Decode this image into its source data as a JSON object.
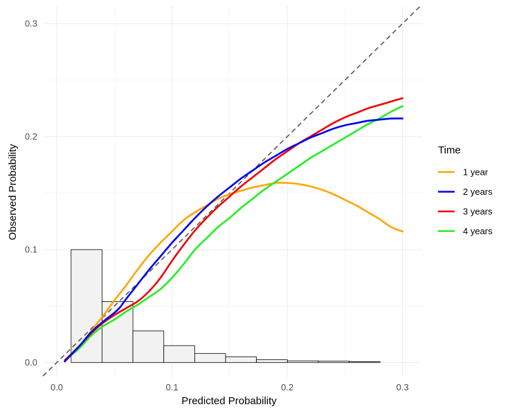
{
  "chart_data": {
    "type": "line",
    "title": "",
    "xlabel": "Predicted Probability",
    "ylabel": "Observed Probability",
    "xlim": [
      -0.012,
      0.317
    ],
    "ylim": [
      -0.013,
      0.316
    ],
    "x_ticks": [
      0.0,
      0.1,
      0.2,
      0.3
    ],
    "x_tick_labels": [
      "0.0",
      "0.1",
      "0.2",
      "0.3"
    ],
    "y_ticks": [
      0.0,
      0.1,
      0.2,
      0.3
    ],
    "y_tick_labels": [
      "0.0",
      "0.1",
      "0.2",
      "0.3"
    ],
    "grid": true,
    "legend": {
      "title": "Time",
      "placement": "right",
      "entries": [
        "1 year",
        "2 years",
        "3 years",
        "4 years"
      ]
    },
    "reference_line": {
      "style": "dashed",
      "color": "#555555",
      "slope": 1,
      "intercept": 0
    },
    "histogram": {
      "bin_edges": [
        0.0125,
        0.0393,
        0.0661,
        0.0929,
        0.1197,
        0.1465,
        0.1733,
        0.2001,
        0.2269,
        0.2537,
        0.2805
      ],
      "values": [
        0.1,
        0.054,
        0.028,
        0.015,
        0.008,
        0.005,
        0.0025,
        0.0015,
        0.0012,
        0.0008
      ],
      "fill": "#f2f2f2",
      "stroke": "#000000"
    },
    "series": [
      {
        "name": "1 year",
        "color": "#FFA500",
        "x": [
          0.007,
          0.02,
          0.03,
          0.04,
          0.05,
          0.06,
          0.07,
          0.08,
          0.09,
          0.1,
          0.11,
          0.12,
          0.13,
          0.14,
          0.15,
          0.16,
          0.17,
          0.18,
          0.19,
          0.2,
          0.21,
          0.22,
          0.23,
          0.24,
          0.25,
          0.26,
          0.27,
          0.28,
          0.29,
          0.3
        ],
        "y": [
          0.002,
          0.014,
          0.028,
          0.041,
          0.055,
          0.068,
          0.082,
          0.095,
          0.106,
          0.116,
          0.126,
          0.133,
          0.139,
          0.145,
          0.149,
          0.152,
          0.155,
          0.157,
          0.159,
          0.159,
          0.158,
          0.156,
          0.153,
          0.149,
          0.144,
          0.139,
          0.133,
          0.127,
          0.12,
          0.116
        ]
      },
      {
        "name": "2 years",
        "color": "#0000EE",
        "x": [
          0.007,
          0.02,
          0.03,
          0.04,
          0.05,
          0.055,
          0.06,
          0.07,
          0.08,
          0.09,
          0.1,
          0.11,
          0.12,
          0.13,
          0.14,
          0.15,
          0.16,
          0.17,
          0.18,
          0.19,
          0.2,
          0.21,
          0.22,
          0.23,
          0.24,
          0.25,
          0.26,
          0.27,
          0.28,
          0.29,
          0.3
        ],
        "y": [
          0.001,
          0.015,
          0.027,
          0.036,
          0.044,
          0.049,
          0.056,
          0.069,
          0.082,
          0.094,
          0.106,
          0.117,
          0.128,
          0.138,
          0.147,
          0.155,
          0.163,
          0.17,
          0.177,
          0.183,
          0.189,
          0.194,
          0.199,
          0.203,
          0.207,
          0.21,
          0.212,
          0.214,
          0.215,
          0.216,
          0.216
        ]
      },
      {
        "name": "3 years",
        "color": "#EE0000",
        "x": [
          0.007,
          0.02,
          0.03,
          0.04,
          0.05,
          0.06,
          0.07,
          0.08,
          0.09,
          0.1,
          0.11,
          0.12,
          0.13,
          0.14,
          0.15,
          0.16,
          0.17,
          0.18,
          0.19,
          0.2,
          0.21,
          0.22,
          0.23,
          0.24,
          0.25,
          0.26,
          0.27,
          0.28,
          0.29,
          0.3
        ],
        "y": [
          0.002,
          0.015,
          0.026,
          0.035,
          0.042,
          0.048,
          0.054,
          0.063,
          0.075,
          0.09,
          0.104,
          0.117,
          0.128,
          0.138,
          0.147,
          0.156,
          0.164,
          0.172,
          0.18,
          0.187,
          0.194,
          0.2,
          0.206,
          0.212,
          0.217,
          0.221,
          0.225,
          0.228,
          0.231,
          0.234
        ]
      },
      {
        "name": "4 years",
        "color": "#22EE22",
        "x": [
          0.007,
          0.02,
          0.03,
          0.04,
          0.05,
          0.06,
          0.07,
          0.08,
          0.09,
          0.1,
          0.11,
          0.12,
          0.13,
          0.14,
          0.15,
          0.16,
          0.17,
          0.18,
          0.19,
          0.2,
          0.21,
          0.22,
          0.23,
          0.24,
          0.25,
          0.26,
          0.27,
          0.28,
          0.29,
          0.3
        ],
        "y": [
          0.002,
          0.013,
          0.024,
          0.032,
          0.038,
          0.045,
          0.051,
          0.058,
          0.065,
          0.075,
          0.087,
          0.1,
          0.11,
          0.12,
          0.128,
          0.137,
          0.145,
          0.153,
          0.16,
          0.167,
          0.174,
          0.181,
          0.187,
          0.193,
          0.199,
          0.205,
          0.211,
          0.216,
          0.222,
          0.227
        ]
      }
    ]
  }
}
